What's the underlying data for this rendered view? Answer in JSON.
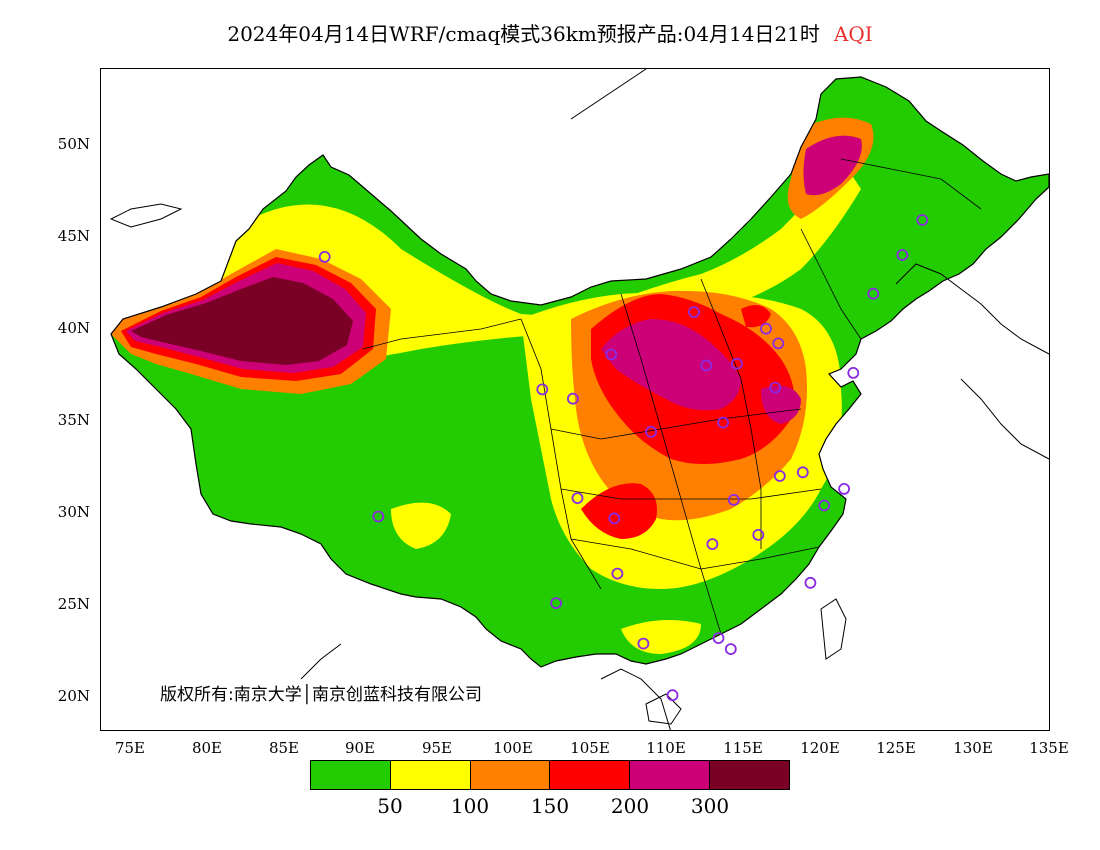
{
  "title": {
    "main": "2024年04月14日WRF/cmaq模式36km预报产品:04月14日21时",
    "product": "AQI"
  },
  "axes": {
    "lat_labels": [
      "50N",
      "45N",
      "40N",
      "35N",
      "30N",
      "25N",
      "20N"
    ],
    "lon_labels": [
      "75E",
      "80E",
      "85E",
      "90E",
      "95E",
      "100E",
      "105E",
      "110E",
      "115E",
      "120E",
      "125E",
      "130E",
      "135E"
    ]
  },
  "copyright": "版权所有:南京大学│南京创蓝科技有限公司",
  "legend": {
    "colors": [
      "#22cc00",
      "#ffff00",
      "#ff8000",
      "#ff0000",
      "#cc0077",
      "#7a0026"
    ],
    "labels": [
      "50",
      "100",
      "150",
      "200",
      "300"
    ]
  },
  "chart_data": {
    "type": "heatmap",
    "title": "2024年04月14日WRF/cmaq模式36km预报产品:04月14日21时 AQI",
    "xlim": [
      73,
      135
    ],
    "ylim": [
      18,
      54
    ],
    "x_ticks": [
      75,
      80,
      85,
      90,
      95,
      100,
      105,
      110,
      115,
      120,
      125,
      130,
      135
    ],
    "y_ticks": [
      20,
      25,
      30,
      35,
      40,
      45,
      50
    ],
    "bins": [
      0,
      50,
      100,
      150,
      200,
      300
    ],
    "bin_colors": [
      "#22cc00",
      "#ffff00",
      "#ff8000",
      "#ff0000",
      "#cc0077",
      "#7a0026"
    ],
    "stations": [
      [
        87.6,
        43.8
      ],
      [
        91.1,
        29.7
      ],
      [
        101.8,
        36.6
      ],
      [
        103.8,
        36.1
      ],
      [
        106.3,
        38.5
      ],
      [
        104.1,
        30.7
      ],
      [
        106.5,
        29.6
      ],
      [
        106.7,
        26.6
      ],
      [
        102.7,
        25.0
      ],
      [
        108.9,
        34.3
      ],
      [
        111.7,
        40.8
      ],
      [
        112.5,
        37.9
      ],
      [
        114.5,
        38.0
      ],
      [
        116.4,
        39.9
      ],
      [
        117.2,
        39.1
      ],
      [
        113.6,
        34.8
      ],
      [
        117.0,
        36.7
      ],
      [
        114.3,
        30.6
      ],
      [
        112.9,
        28.2
      ],
      [
        115.9,
        28.7
      ],
      [
        117.3,
        31.9
      ],
      [
        118.8,
        32.1
      ],
      [
        120.2,
        30.3
      ],
      [
        121.5,
        31.2
      ],
      [
        119.3,
        26.1
      ],
      [
        113.3,
        23.1
      ],
      [
        108.4,
        22.8
      ],
      [
        110.3,
        20.0
      ],
      [
        123.4,
        41.8
      ],
      [
        125.3,
        43.9
      ],
      [
        126.6,
        45.8
      ],
      [
        114.1,
        22.5
      ],
      [
        122.1,
        37.5
      ]
    ]
  }
}
